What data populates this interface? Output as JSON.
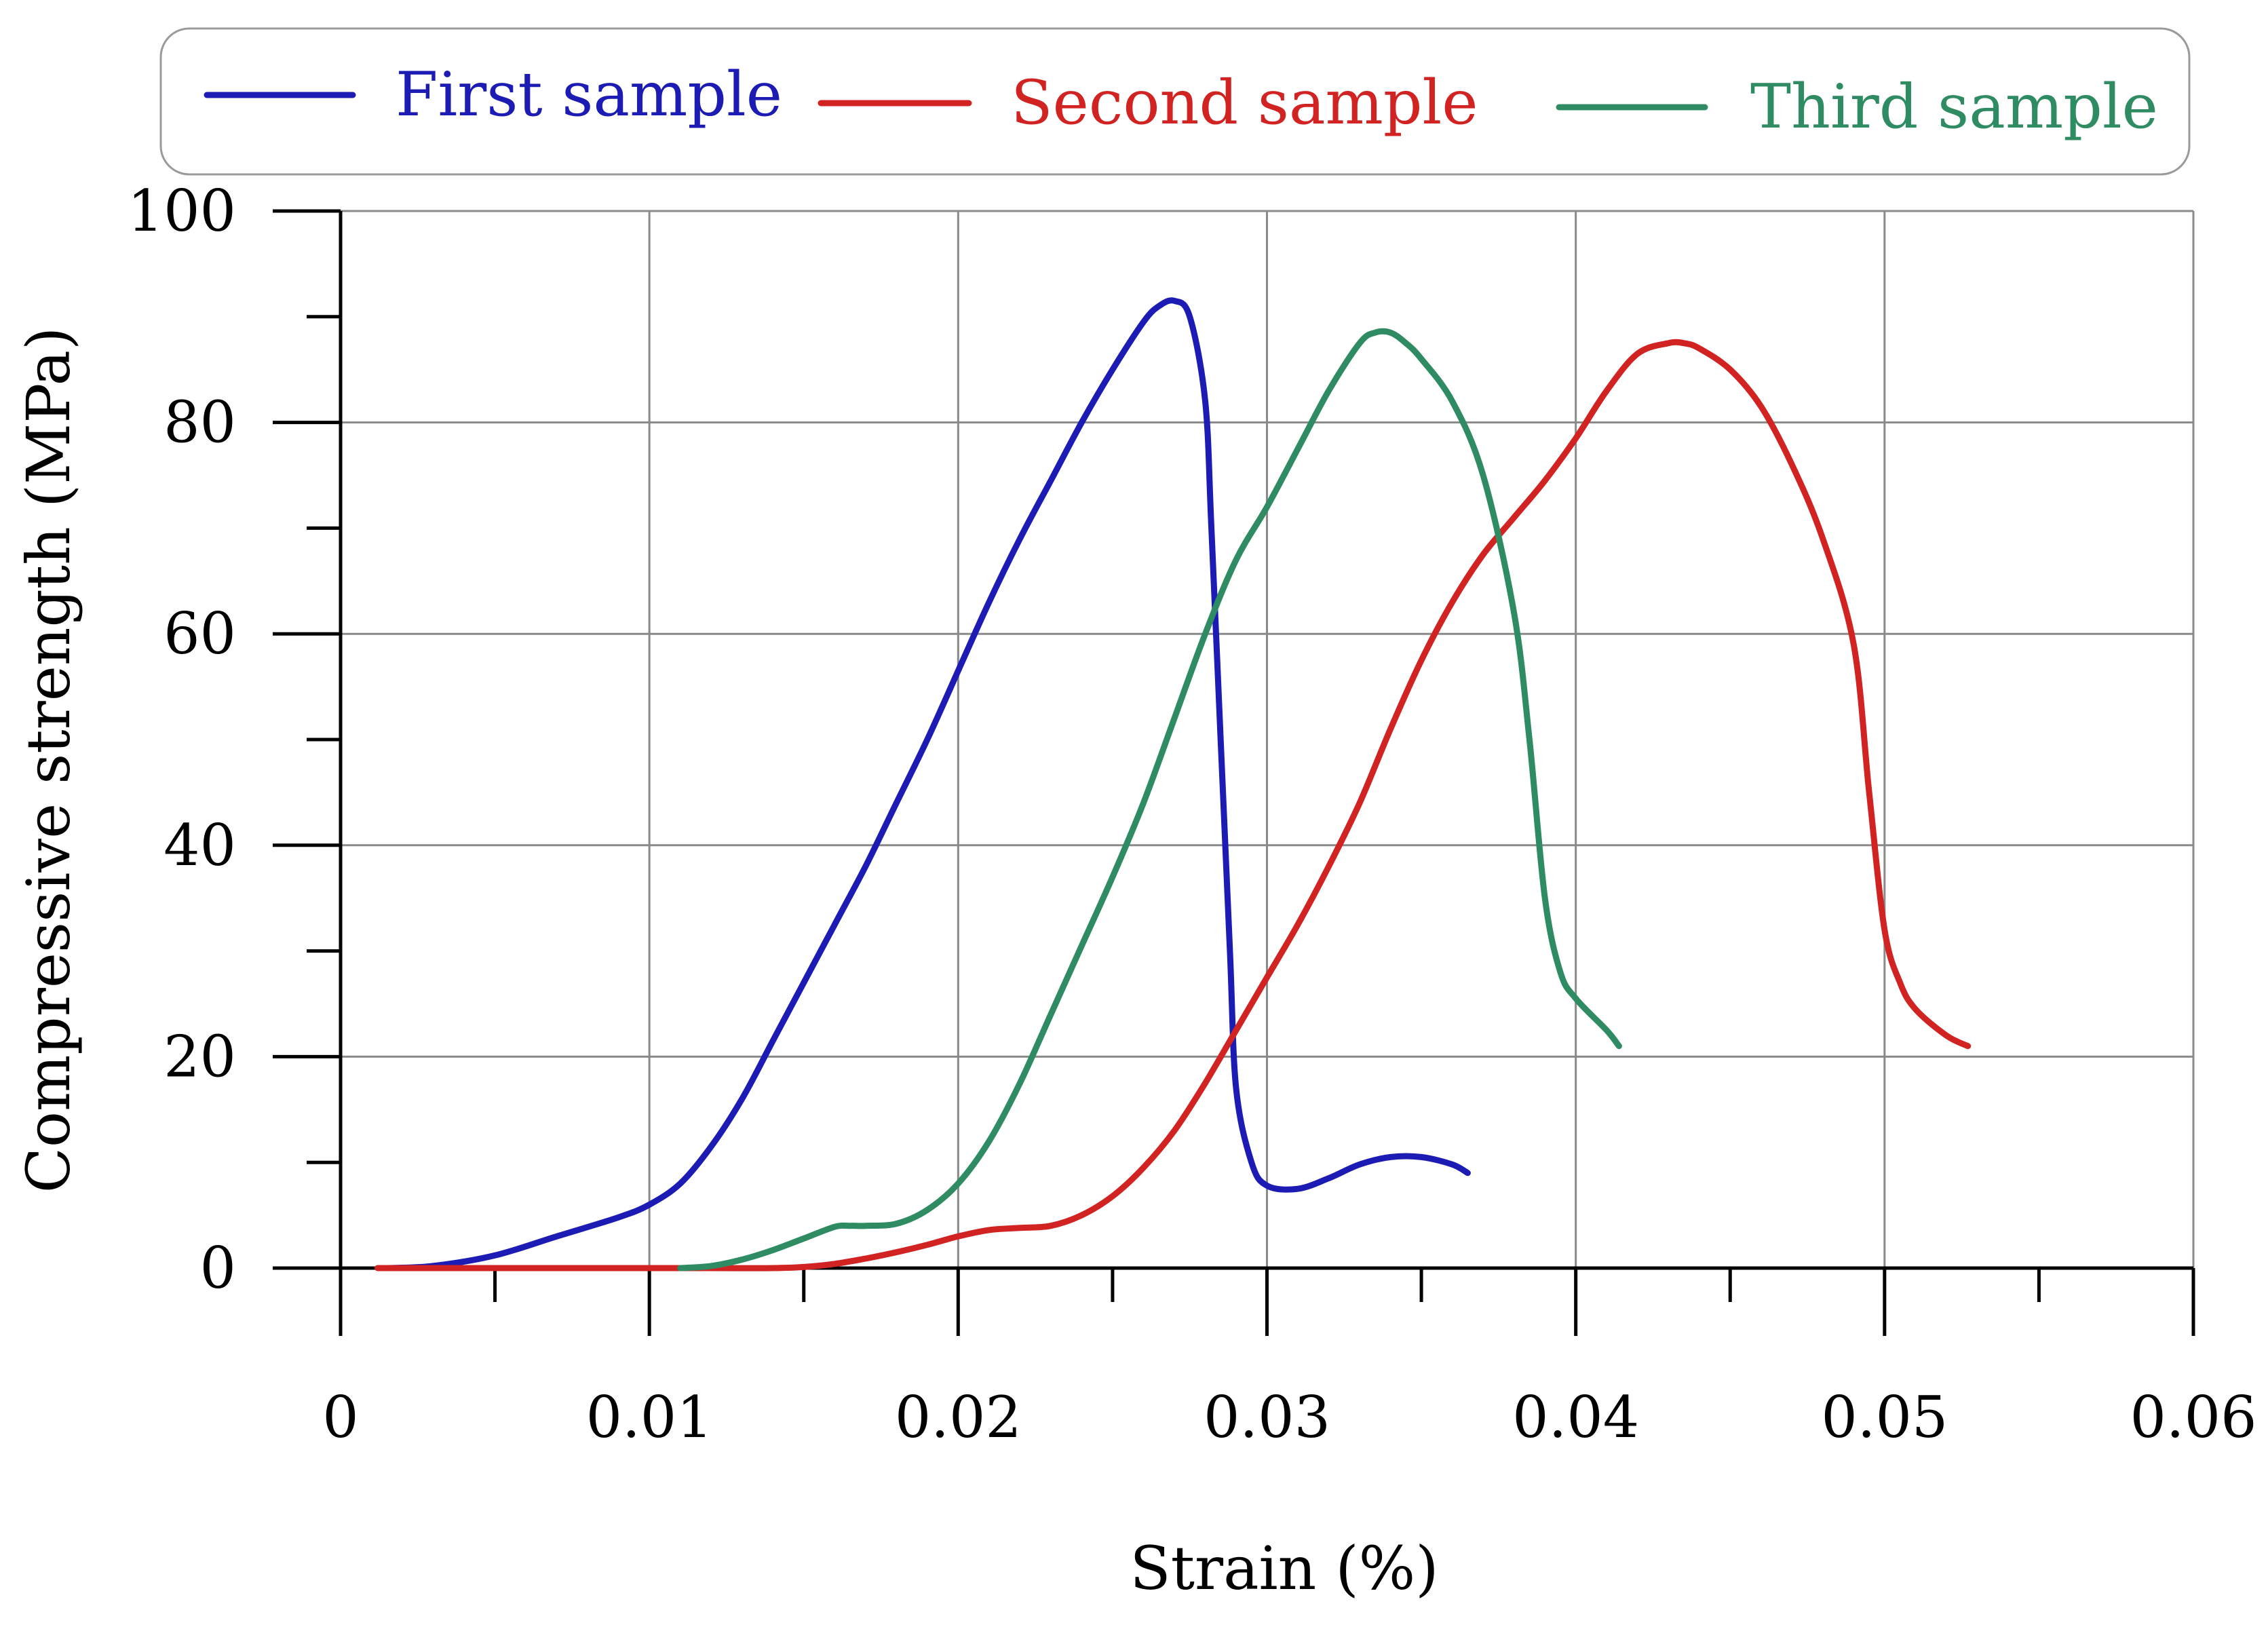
{
  "chart_data": {
    "type": "line",
    "title": "",
    "xlabel": "Strain (%)",
    "ylabel": "Compressive strength (MPa)",
    "xlim": [
      0,
      0.06
    ],
    "ylim": [
      0,
      100
    ],
    "xticks": [
      0,
      0.01,
      0.02,
      0.03,
      0.04,
      0.05,
      0.06
    ],
    "xtick_labels": [
      "0",
      "0.01",
      "0.02",
      "0.03",
      "0.04",
      "0.05",
      "0.06"
    ],
    "yticks": [
      0,
      20,
      40,
      60,
      80,
      100
    ],
    "ytick_labels": [
      "0",
      "20",
      "40",
      "60",
      "80",
      "100"
    ],
    "grid": true,
    "legend_position": "top",
    "series": [
      {
        "name": "First sample",
        "color": "#1c1cb4",
        "x": [
          0.0015,
          0.003,
          0.005,
          0.007,
          0.009,
          0.01,
          0.011,
          0.012,
          0.013,
          0.014,
          0.015,
          0.016,
          0.017,
          0.018,
          0.019,
          0.02,
          0.021,
          0.022,
          0.023,
          0.024,
          0.025,
          0.026,
          0.0265,
          0.027,
          0.0275,
          0.028,
          0.0282,
          0.0285,
          0.0288,
          0.029,
          0.0295,
          0.03,
          0.031,
          0.032,
          0.033,
          0.034,
          0.035,
          0.036,
          0.0365
        ],
        "y": [
          0,
          0.2,
          1.2,
          3,
          4.8,
          6,
          8,
          11.5,
          16,
          21.5,
          27,
          32.5,
          38,
          44,
          50,
          56.5,
          63,
          69,
          74.5,
          80,
          85,
          89.5,
          91,
          91.5,
          90,
          82,
          70,
          50,
          30,
          17,
          10,
          7.8,
          7.5,
          8.5,
          9.8,
          10.5,
          10.5,
          9.8,
          9
        ]
      },
      {
        "name": "Second sample",
        "color": "#d22323",
        "x": [
          0.0012,
          0.003,
          0.005,
          0.008,
          0.01,
          0.012,
          0.014,
          0.015,
          0.016,
          0.017,
          0.018,
          0.019,
          0.02,
          0.021,
          0.022,
          0.023,
          0.024,
          0.025,
          0.026,
          0.027,
          0.028,
          0.029,
          0.03,
          0.031,
          0.032,
          0.033,
          0.034,
          0.035,
          0.036,
          0.037,
          0.038,
          0.039,
          0.04,
          0.041,
          0.042,
          0.043,
          0.0435,
          0.044,
          0.045,
          0.046,
          0.047,
          0.048,
          0.049,
          0.0495,
          0.05,
          0.0505,
          0.051,
          0.052,
          0.0527
        ],
        "y": [
          0,
          0,
          0,
          0,
          0,
          0,
          0,
          0.1,
          0.4,
          0.9,
          1.5,
          2.2,
          3,
          3.6,
          3.8,
          4,
          5,
          6.8,
          9.5,
          13,
          17.5,
          22.5,
          27.5,
          32.5,
          38,
          44,
          51,
          57.5,
          63,
          67.5,
          71,
          74.5,
          78.5,
          83,
          86.5,
          87.5,
          87.5,
          87,
          85,
          81.5,
          76,
          69,
          59,
          45,
          32,
          27,
          24.5,
          22,
          21
        ]
      },
      {
        "name": "Third sample",
        "color": "#2e8b62",
        "x": [
          0.011,
          0.012,
          0.013,
          0.014,
          0.015,
          0.016,
          0.0165,
          0.017,
          0.018,
          0.019,
          0.02,
          0.021,
          0.022,
          0.023,
          0.024,
          0.025,
          0.026,
          0.027,
          0.028,
          0.029,
          0.03,
          0.031,
          0.032,
          0.033,
          0.0335,
          0.034,
          0.0345,
          0.035,
          0.036,
          0.037,
          0.038,
          0.0385,
          0.039,
          0.0395,
          0.04,
          0.041,
          0.0414
        ],
        "y": [
          0,
          0.2,
          0.8,
          1.7,
          2.8,
          3.9,
          4,
          4,
          4.2,
          5.5,
          8,
          12,
          17.5,
          24,
          30.5,
          37,
          44,
          52,
          60,
          67,
          72,
          77.5,
          83,
          87.5,
          88.5,
          88.5,
          87.5,
          86,
          82,
          75,
          62,
          50,
          35,
          28,
          25.5,
          22.5,
          21
        ]
      }
    ]
  }
}
